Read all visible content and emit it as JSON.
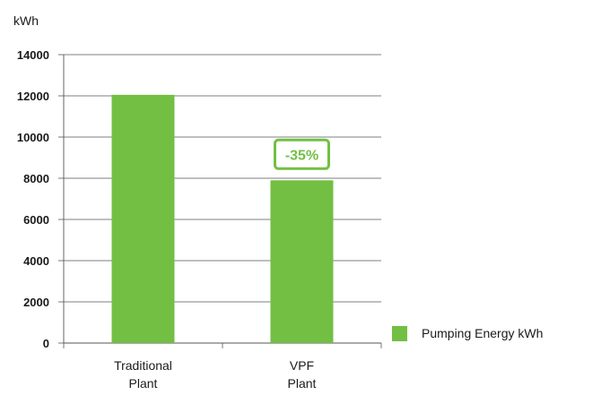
{
  "chart_data": {
    "type": "bar",
    "ylabel": "kWh",
    "ylim": [
      0,
      14000
    ],
    "yticks": [
      0,
      2000,
      4000,
      6000,
      8000,
      10000,
      12000,
      14000
    ],
    "ytick_labels": [
      "0",
      "2000",
      "4000",
      "6000",
      "8000",
      "10000",
      "12000",
      "14000"
    ],
    "categories": [
      [
        "Traditional",
        "Plant"
      ],
      [
        "VPF",
        "Plant"
      ]
    ],
    "series": [
      {
        "name": "Pumping Energy kWh",
        "values": [
          12050,
          7900
        ],
        "color": "#72bf44"
      }
    ],
    "grid": true,
    "legend": "right",
    "annotations": [
      {
        "text": "-35%",
        "category_index": 1,
        "color": "#72bf44"
      }
    ]
  }
}
